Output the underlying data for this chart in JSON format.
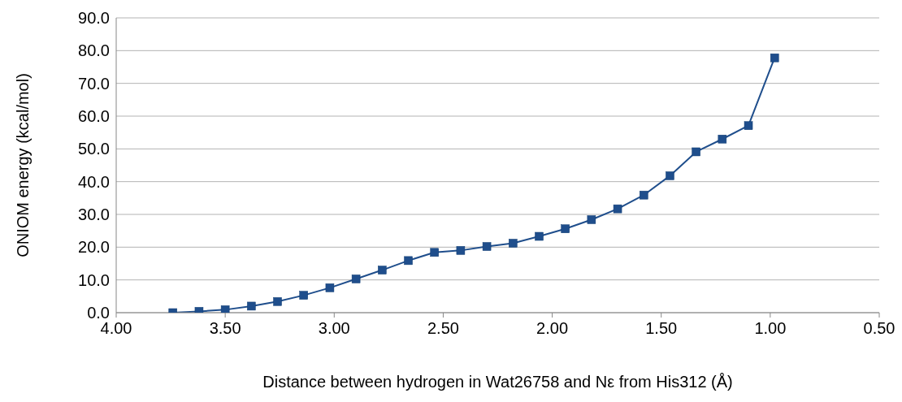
{
  "chart_data": {
    "type": "line",
    "xlabel": "Distance between hydrogen in Wat26758 and Nε from His312 (Å)",
    "ylabel": "ONIOM energy (kcal/mol)",
    "x": [
      3.74,
      3.62,
      3.5,
      3.38,
      3.26,
      3.14,
      3.02,
      2.9,
      2.78,
      2.66,
      2.54,
      2.42,
      2.3,
      2.18,
      2.06,
      1.94,
      1.82,
      1.7,
      1.58,
      1.46,
      1.34,
      1.22,
      1.1,
      0.98
    ],
    "series": [
      {
        "color": "#1f4e8c",
        "values": [
          0.0,
          0.4,
          0.9,
          2.0,
          3.4,
          5.3,
          7.6,
          10.3,
          13.0,
          15.9,
          18.4,
          19.0,
          20.2,
          21.2,
          23.3,
          25.6,
          28.4,
          31.7,
          35.9,
          41.8,
          49.1,
          53.0,
          57.1,
          77.8
        ]
      }
    ],
    "xlim": [
      4.0,
      0.5
    ],
    "xticks": [
      {
        "value": 4,
        "label": "4.00"
      },
      {
        "value": 3.5,
        "label": "3.50"
      },
      {
        "value": 3,
        "label": "3.00"
      },
      {
        "value": 2.5,
        "label": "2.50"
      },
      {
        "value": 2,
        "label": "2.00"
      },
      {
        "value": 1.5,
        "label": "1.50"
      },
      {
        "value": 1,
        "label": "1.00"
      },
      {
        "value": 0.5,
        "label": "0.50"
      }
    ],
    "ylim": [
      0,
      90
    ],
    "yticks": [
      {
        "value": 0,
        "label": "0.0"
      },
      {
        "value": 10,
        "label": "10.0"
      },
      {
        "value": 20,
        "label": "20.0"
      },
      {
        "value": 30,
        "label": "30.0"
      },
      {
        "value": 40,
        "label": "40.0"
      },
      {
        "value": 50,
        "label": "50.0"
      },
      {
        "value": 60,
        "label": "60.0"
      },
      {
        "value": 70,
        "label": "70.0"
      },
      {
        "value": 80,
        "label": "80.0"
      },
      {
        "value": 90,
        "label": "90.0"
      }
    ],
    "grid": "y",
    "marker": "square",
    "line_style": "solid"
  }
}
